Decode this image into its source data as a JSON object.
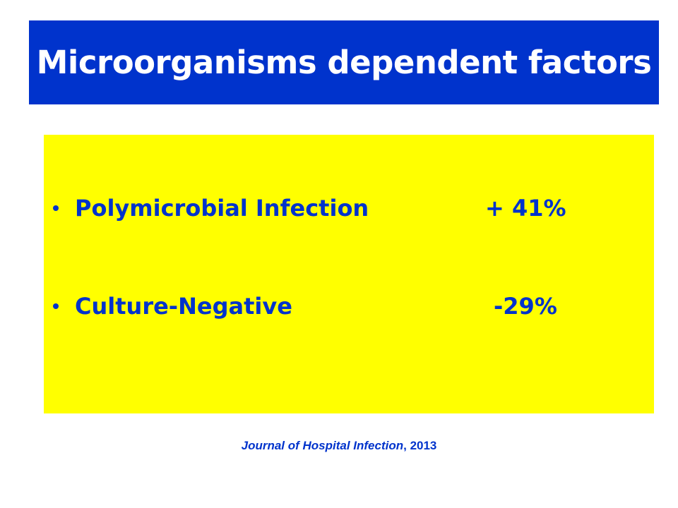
{
  "slide": {
    "title": "Microorganisms dependent factors",
    "bullets": [
      {
        "label": "Polymicrobial Infection",
        "value": "+ 41%"
      },
      {
        "label": "Culture-Negative",
        "value": "-29%"
      }
    ],
    "citation": {
      "journal": "Journal of Hospital Infection",
      "year": ", 2013"
    }
  },
  "colors": {
    "title_bar": "#0033cc",
    "title_text": "#ffffff",
    "content_bg": "#ffff00",
    "content_text": "#0033cc"
  },
  "icons": {
    "bullet": "bullet-dot-icon"
  }
}
